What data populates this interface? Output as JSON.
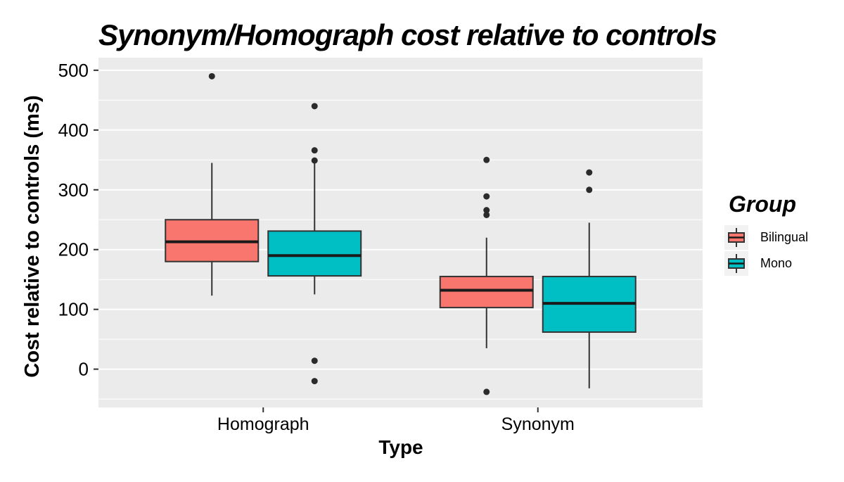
{
  "title": "Synonym/Homograph cost relative to controls",
  "chart_data": {
    "type": "boxplot",
    "title": "Synonym/Homograph cost relative to controls",
    "xlabel": "Type",
    "ylabel": "Cost relative to controls (ms)",
    "categories": [
      "Homograph",
      "Synonym"
    ],
    "y_ticks": [
      0,
      100,
      200,
      300,
      400,
      500
    ],
    "y_minor_ticks": [
      -50,
      50,
      150,
      250,
      350,
      450
    ],
    "ylim": [
      -64,
      521
    ],
    "grid": "major and minor white gridlines on",
    "panel_bg": "#EBEBEB",
    "gridline_color": "#FFFFFF",
    "box_outline_color": "#333333",
    "median_color": "#1A1A1A",
    "outlier_color": "#2B2B2B",
    "text_color": "#000000",
    "legend": {
      "title": "Group",
      "position": "right"
    },
    "series": [
      {
        "name": "Bilingual",
        "color": "#F8766D",
        "boxes": [
          {
            "category": "Homograph",
            "whisker_low": 123,
            "q1": 180,
            "median": 213,
            "q3": 250,
            "whisker_high": 345,
            "outliers": [
              490
            ]
          },
          {
            "category": "Synonym",
            "whisker_low": 35,
            "q1": 103,
            "median": 132,
            "q3": 155,
            "whisker_high": 220,
            "outliers": [
              350,
              289,
              266,
              258,
              -38
            ]
          }
        ]
      },
      {
        "name": "Mono",
        "color": "#00BFC4",
        "boxes": [
          {
            "category": "Homograph",
            "whisker_low": 125,
            "q1": 156,
            "median": 190,
            "q3": 231,
            "whisker_high": 347,
            "outliers": [
              440,
              366,
              349,
              14,
              -20
            ]
          },
          {
            "category": "Synonym",
            "whisker_low": -32,
            "q1": 62,
            "median": 110,
            "q3": 155,
            "whisker_high": 245,
            "outliers": [
              329,
              300
            ]
          }
        ]
      }
    ]
  }
}
